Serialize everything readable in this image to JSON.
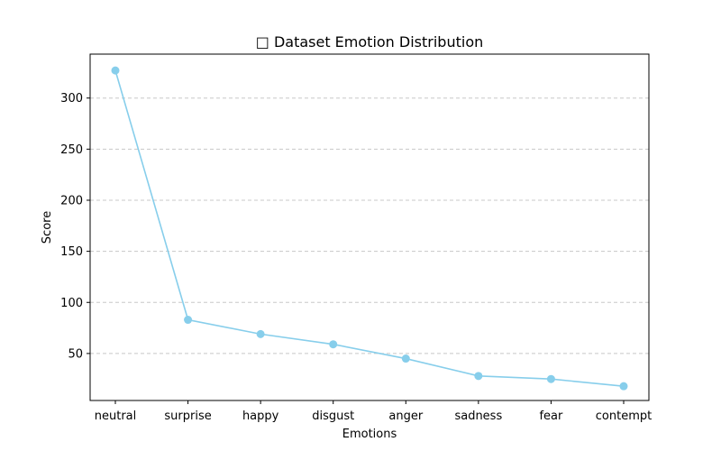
{
  "chart_data": {
    "type": "line",
    "title": "□ Dataset Emotion Distribution",
    "xlabel": "Emotions",
    "ylabel": "Score",
    "categories": [
      "neutral",
      "surprise",
      "happy",
      "disgust",
      "anger",
      "sadness",
      "fear",
      "contempt"
    ],
    "series": [
      {
        "values": [
          327,
          83,
          69,
          59,
          45,
          28,
          25,
          18
        ],
        "color": "#87ceeb",
        "marker": "circle"
      }
    ],
    "ylim": [
      4,
      343
    ],
    "yticks": [
      50,
      100,
      150,
      200,
      250,
      300
    ],
    "grid": "y-dashed",
    "legend": "none"
  }
}
